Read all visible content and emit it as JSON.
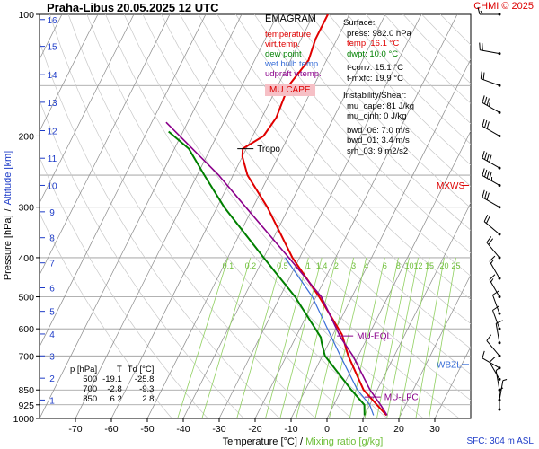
{
  "header": {
    "station": "Praha-Libus",
    "datetime": "20.05.2025 12 UTC",
    "copyright": "CHMI © 2025"
  },
  "legend": {
    "title": "EMAGRAM",
    "items": [
      {
        "label": "temperature",
        "color": "#e00000"
      },
      {
        "label": "virt.temp.",
        "color": "#e00000"
      },
      {
        "label": "dew point",
        "color": "#008000"
      },
      {
        "label": "wet bulb temp.",
        "color": "#3a6fd8"
      },
      {
        "label": "udpraft v.temp.",
        "color": "#8b008b"
      }
    ],
    "mu_cape": "MU CAPE"
  },
  "surface": {
    "heading": "Surface:",
    "press": "press: 982.0 hPa",
    "temp": "temp: 16.1 °C",
    "dwpt": "dwpt: 10.0 °C",
    "tconv": "t-conv: 15.1 °C",
    "tmxfc": "t-mxfc: 19.9 °C"
  },
  "instability": {
    "heading": "Instability/Shear:",
    "mu_cape": "mu_cape: 81 J/kg",
    "mu_cinh": "mu_cinh: 0 J/kg",
    "bwd_06": "bwd_06: 7.0 m/s",
    "bwd_01": "bwd_01: 3.4 m/s",
    "srh_03": "srh_03: 9 m2/s2"
  },
  "table": {
    "headers": [
      "p [hPa]",
      "T",
      "Td [°C]"
    ],
    "rows": [
      [
        "500",
        "-19.1",
        "-25.8"
      ],
      [
        "700",
        "-2.8",
        "-9.3"
      ],
      [
        "850",
        "6.2",
        "2.8"
      ]
    ]
  },
  "footer": {
    "xlabel_temp": "Temperature [°C]",
    "sep": "/",
    "xlabel_mix": "Mixing ratio [g/kg]",
    "sfc": "SFC: 304 m ASL"
  },
  "colors": {
    "temperature": "#e00000",
    "dewpoint": "#008000",
    "wetbulb": "#3a6fd8",
    "parcel": "#8b008b",
    "mixing": "#90d060",
    "altitude": "#1e3cc8",
    "isotherm": "#888888",
    "dryadiabat": "#c8c8c8"
  },
  "chart_data": {
    "type": "line",
    "ylabel_pressure": "Pressure [hPa]",
    "ylabel_altitude": "Altitude [km]",
    "xlim": [
      -80,
      40
    ],
    "ylim": [
      1000,
      100
    ],
    "x_ticks": [
      -70,
      -60,
      -50,
      -40,
      -30,
      -20,
      -10,
      0,
      10,
      20,
      30
    ],
    "pressure_ticks": [
      100,
      200,
      300,
      400,
      500,
      600,
      700,
      850,
      925,
      1000
    ],
    "altitude_ticks": [
      {
        "km": 1,
        "p": 900
      },
      {
        "km": 2,
        "p": 795
      },
      {
        "km": 3,
        "p": 700
      },
      {
        "km": 4,
        "p": 618
      },
      {
        "km": 5,
        "p": 543
      },
      {
        "km": 6,
        "p": 475
      },
      {
        "km": 7,
        "p": 412
      },
      {
        "km": 8,
        "p": 357
      },
      {
        "km": 9,
        "p": 308
      },
      {
        "km": 10,
        "p": 265
      },
      {
        "km": 11,
        "p": 227
      },
      {
        "km": 12,
        "p": 194
      },
      {
        "km": 13,
        "p": 165
      },
      {
        "km": 14,
        "p": 141
      },
      {
        "km": 15,
        "p": 120
      },
      {
        "km": 16,
        "p": 103
      }
    ],
    "mixing_ratio_labels": [
      "0.1",
      "0.2",
      "0.5",
      "1",
      "1.4",
      "2",
      "3",
      "4",
      "6",
      "8",
      "10",
      "12",
      "15",
      "20",
      "25"
    ],
    "series": [
      {
        "name": "temperature",
        "points": [
          [
            16.1,
            982
          ],
          [
            12,
            925
          ],
          [
            6.2,
            850
          ],
          [
            -2.8,
            700
          ],
          [
            -7.5,
            620
          ],
          [
            -19.1,
            500
          ],
          [
            -32,
            400
          ],
          [
            -46,
            300
          ],
          [
            -56,
            250
          ],
          [
            -60,
            225
          ],
          [
            -61,
            215
          ],
          [
            -57,
            200
          ],
          [
            -56,
            180
          ],
          [
            -57,
            150
          ],
          [
            -55,
            130
          ],
          [
            -56,
            115
          ],
          [
            -56,
            100
          ]
        ]
      },
      {
        "name": "dew point",
        "points": [
          [
            10,
            982
          ],
          [
            8.5,
            925
          ],
          [
            2.8,
            850
          ],
          [
            -9.3,
            700
          ],
          [
            -12,
            650
          ],
          [
            -13,
            630
          ],
          [
            -25.8,
            500
          ],
          [
            -40,
            400
          ],
          [
            -58,
            300
          ],
          [
            -68,
            250
          ],
          [
            -76,
            215
          ],
          [
            -84,
            195
          ]
        ]
      },
      {
        "name": "wet bulb temp.",
        "points": [
          [
            12.5,
            982
          ],
          [
            10,
            925
          ],
          [
            4.5,
            850
          ],
          [
            -5,
            700
          ],
          [
            -10,
            630
          ],
          [
            -21,
            500
          ],
          [
            -34,
            400
          ]
        ]
      },
      {
        "name": "udpraft v.temp.",
        "points": [
          [
            16.3,
            982
          ],
          [
            13,
            925
          ],
          [
            8,
            850
          ],
          [
            -1.5,
            700
          ],
          [
            -7.5,
            630
          ],
          [
            -18.5,
            500
          ],
          [
            -33,
            400
          ],
          [
            -52,
            300
          ],
          [
            -64,
            250
          ],
          [
            -86,
            185
          ]
        ]
      }
    ],
    "annotations": [
      {
        "label": "Tropo",
        "p": 215
      },
      {
        "label": "MU-EQL",
        "p": 625
      },
      {
        "label": "MU-LFC",
        "p": 885
      },
      {
        "label": "MXWS",
        "p": 265
      },
      {
        "label": "WBZL",
        "p": 735
      }
    ],
    "wind_barbs": [
      {
        "p": 100,
        "dir": 270,
        "kt": 15
      },
      {
        "p": 125,
        "dir": 280,
        "kt": 20
      },
      {
        "p": 150,
        "dir": 290,
        "kt": 20
      },
      {
        "p": 175,
        "dir": 300,
        "kt": 35
      },
      {
        "p": 200,
        "dir": 300,
        "kt": 30
      },
      {
        "p": 240,
        "dir": 300,
        "kt": 40
      },
      {
        "p": 265,
        "dir": 300,
        "kt": 45
      },
      {
        "p": 300,
        "dir": 300,
        "kt": 30
      },
      {
        "p": 350,
        "dir": 310,
        "kt": 20
      },
      {
        "p": 400,
        "dir": 320,
        "kt": 20
      },
      {
        "p": 450,
        "dir": 330,
        "kt": 15
      },
      {
        "p": 500,
        "dir": 330,
        "kt": 15
      },
      {
        "p": 550,
        "dir": 340,
        "kt": 10
      },
      {
        "p": 600,
        "dir": 340,
        "kt": 10
      },
      {
        "p": 650,
        "dir": 350,
        "kt": 10
      },
      {
        "p": 700,
        "dir": 320,
        "kt": 10
      },
      {
        "p": 750,
        "dir": 300,
        "kt": 10
      },
      {
        "p": 800,
        "dir": 330,
        "kt": 10
      },
      {
        "p": 850,
        "dir": 350,
        "kt": 5
      },
      {
        "p": 900,
        "dir": 10,
        "kt": 5
      },
      {
        "p": 950,
        "dir": 0,
        "kt": 5
      }
    ]
  }
}
